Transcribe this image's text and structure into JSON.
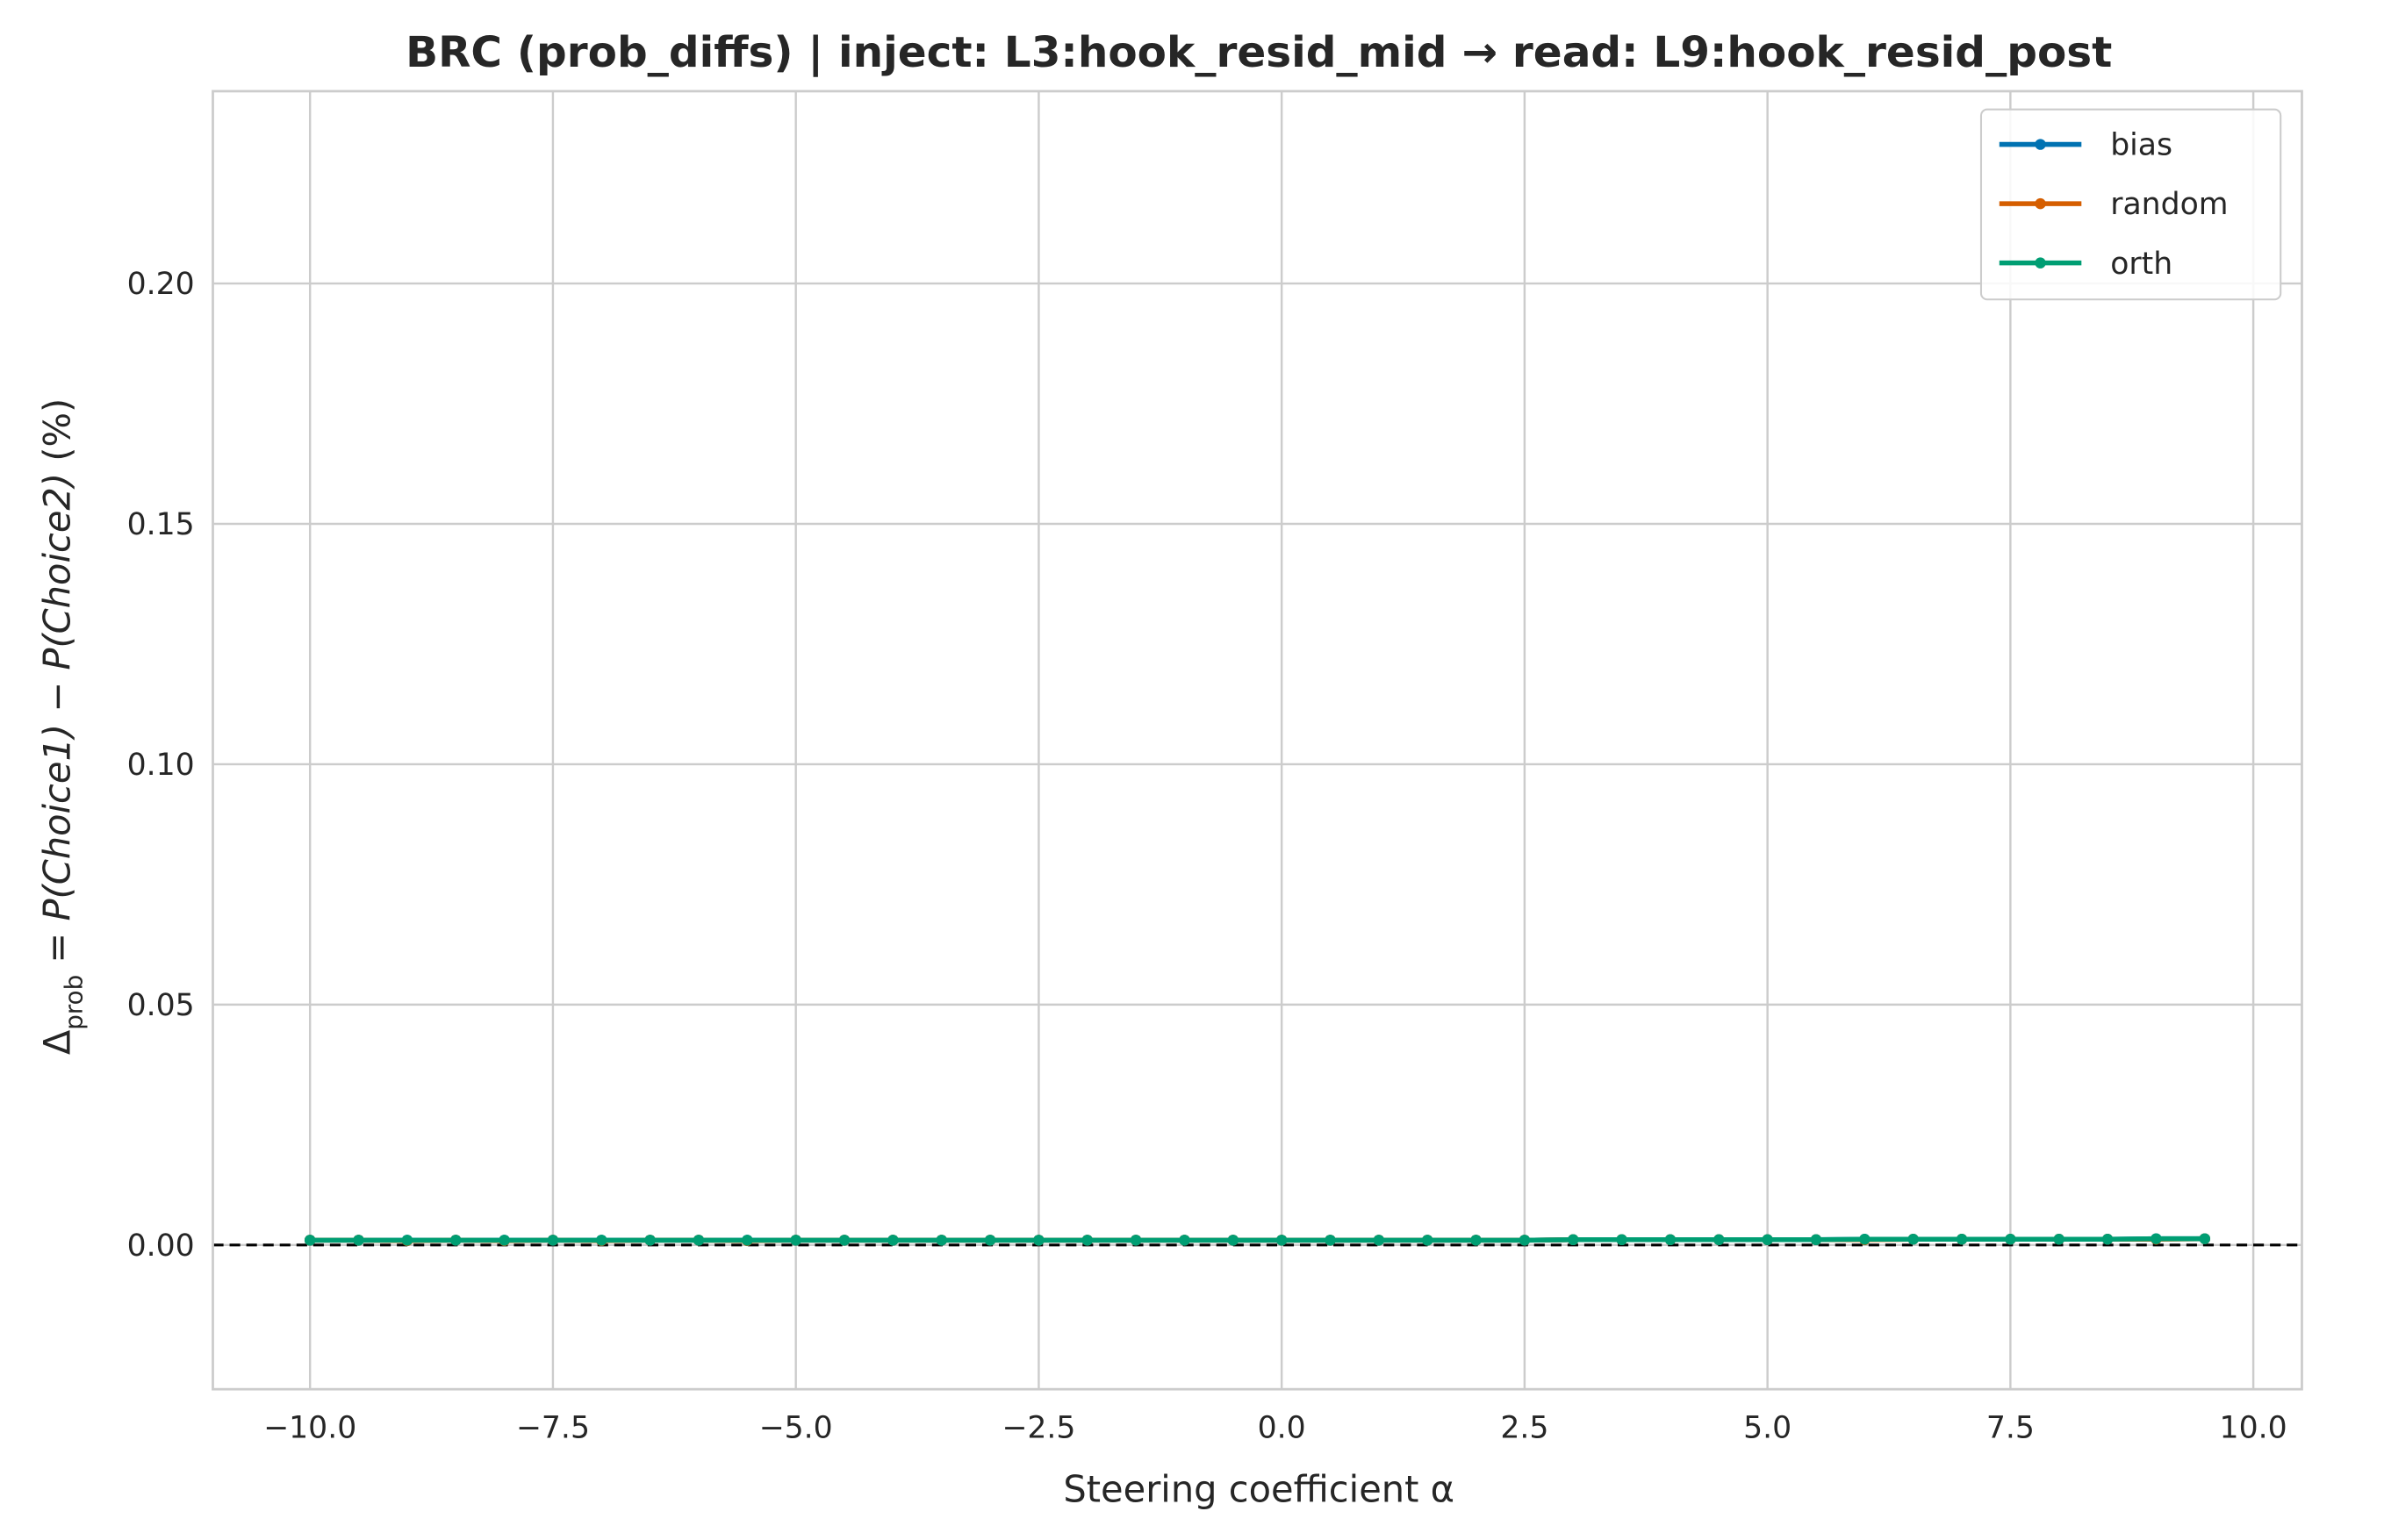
{
  "chart_data": {
    "type": "line",
    "title": "BRC (prob_diffs) | inject: L3:hook_resid_mid → read: L9:hook_resid_post",
    "xlabel": "Steering coefficient α",
    "ylabel_parts": {
      "delta": "Δ",
      "sub": "prob",
      "eq": " = ",
      "p1": "P(Choice1)",
      "minus": " − ",
      "p2": "P(Choice2)",
      "unit": " (%)"
    },
    "xlim": [
      -11,
      10.5
    ],
    "ylim": [
      -0.03,
      0.24
    ],
    "xticks": [
      -10.0,
      -7.5,
      -5.0,
      -2.5,
      0.0,
      2.5,
      5.0,
      7.5,
      10.0
    ],
    "xtick_labels": [
      "−10.0",
      "−7.5",
      "−5.0",
      "−2.5",
      "0.0",
      "2.5",
      "5.0",
      "7.5",
      "10.0"
    ],
    "yticks": [
      0.0,
      0.05,
      0.1,
      0.15,
      0.2
    ],
    "ytick_labels": [
      "0.00",
      "0.05",
      "0.10",
      "0.15",
      "0.20"
    ],
    "grid": true,
    "legend_position": "top-right",
    "reference_line": {
      "y": 0,
      "style": "dashed",
      "color": "#000000"
    },
    "x": [
      -10.0,
      -9.5,
      -9.0,
      -8.5,
      -8.0,
      -7.5,
      -7.0,
      -6.5,
      -6.0,
      -5.5,
      -5.0,
      -4.5,
      -4.0,
      -3.5,
      -3.0,
      -2.5,
      -2.0,
      -1.5,
      -1.0,
      -0.5,
      0.0,
      0.5,
      1.0,
      1.5,
      2.0,
      2.5,
      3.0,
      3.5,
      4.0,
      4.5,
      5.0,
      5.5,
      6.0,
      6.5,
      7.0,
      7.5,
      8.0,
      8.5,
      9.0,
      9.5
    ],
    "series": [
      {
        "name": "bias",
        "color": "#0072b2",
        "values": [
          0.001,
          0.001,
          0.001,
          0.001,
          0.001,
          0.001,
          0.001,
          0.001,
          0.001,
          0.001,
          0.001,
          0.001,
          0.001,
          0.001,
          0.001,
          0.001,
          0.001,
          0.001,
          0.001,
          0.001,
          0.001,
          0.001,
          0.001,
          0.001,
          0.001,
          0.001,
          0.0011,
          0.0011,
          0.0011,
          0.0011,
          0.0011,
          0.0011,
          0.0012,
          0.0012,
          0.0012,
          0.0012,
          0.0012,
          0.0012,
          0.0013,
          0.0013
        ]
      },
      {
        "name": "random",
        "color": "#d55e00",
        "values": [
          0.001,
          0.001,
          0.0009,
          0.001,
          0.0009,
          0.001,
          0.0009,
          0.001,
          0.001,
          0.0009,
          0.001,
          0.001,
          0.001,
          0.001,
          0.001,
          0.001,
          0.001,
          0.001,
          0.001,
          0.001,
          0.001,
          0.001,
          0.001,
          0.001,
          0.001,
          0.001,
          0.0011,
          0.0011,
          0.0011,
          0.0011,
          0.0011,
          0.0011,
          0.0011,
          0.0012,
          0.0012,
          0.0012,
          0.0012,
          0.0012,
          0.0012,
          0.0013
        ]
      },
      {
        "name": "orth",
        "color": "#009e73",
        "values": [
          0.001,
          0.001,
          0.001,
          0.001,
          0.001,
          0.001,
          0.001,
          0.001,
          0.001,
          0.001,
          0.001,
          0.001,
          0.001,
          0.001,
          0.001,
          0.001,
          0.001,
          0.001,
          0.001,
          0.001,
          0.001,
          0.001,
          0.001,
          0.001,
          0.001,
          0.001,
          0.0011,
          0.0011,
          0.0011,
          0.0011,
          0.0011,
          0.0011,
          0.0012,
          0.0012,
          0.0012,
          0.0012,
          0.0012,
          0.0012,
          0.0013,
          0.0013
        ]
      }
    ]
  }
}
